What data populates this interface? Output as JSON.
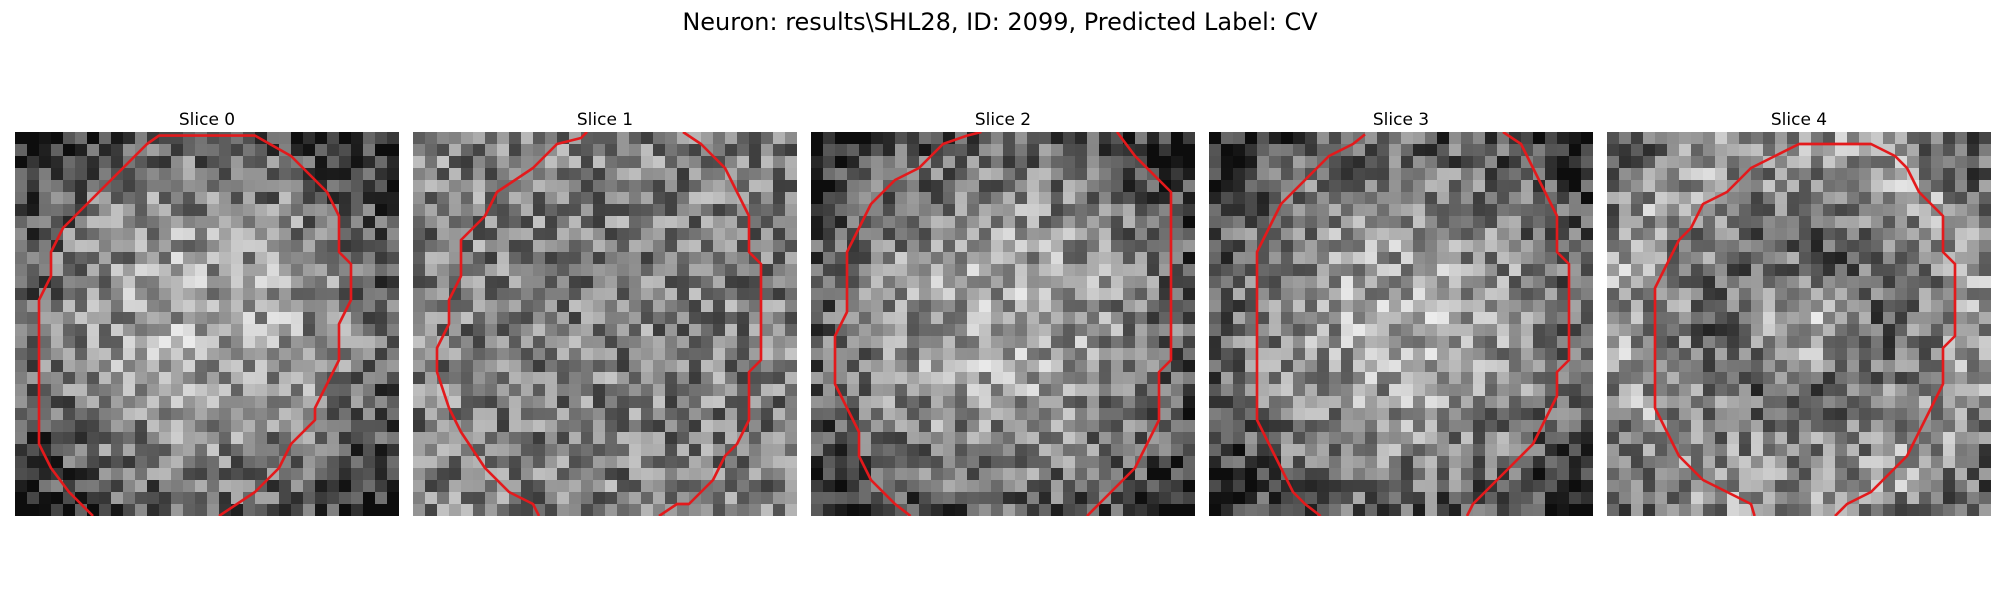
{
  "figure": {
    "title": "Neuron: results\\SHL28, ID: 2099, Predicted Label: CV"
  },
  "slices": [
    {
      "label": "Slice 0",
      "seed": 11,
      "pattern": "bright-center"
    },
    {
      "label": "Slice 1",
      "seed": 23,
      "pattern": "uniform"
    },
    {
      "label": "Slice 2",
      "seed": 37,
      "pattern": "bright-center"
    },
    {
      "label": "Slice 3",
      "seed": 41,
      "pattern": "bright-center"
    },
    {
      "label": "Slice 4",
      "seed": 59,
      "pattern": "ring"
    }
  ],
  "colors": {
    "contour": "#e31a1c",
    "background": "#ffffff"
  }
}
